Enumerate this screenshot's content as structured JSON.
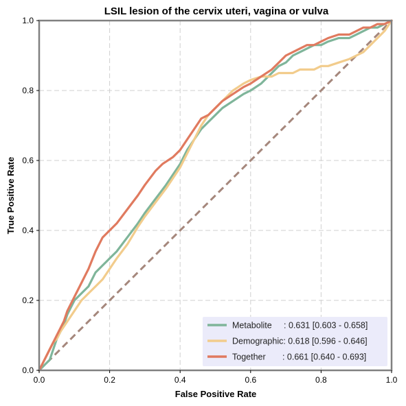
{
  "chart_data": {
    "type": "line",
    "title": "LSIL lesion of the cervix uteri, vagina or vulva",
    "xlabel": "False Positive Rate",
    "ylabel": "True Positive Rate",
    "xlim": [
      0,
      1
    ],
    "ylim": [
      0,
      1
    ],
    "xticks": [
      "0.0",
      "0.2",
      "0.4",
      "0.6",
      "0.8",
      "1.0"
    ],
    "yticks": [
      "0.0",
      "0.2",
      "0.4",
      "0.6",
      "0.8",
      "1.0"
    ],
    "grid": true,
    "legend_position": "bottom-right",
    "series": [
      {
        "name": "Metabolite",
        "legend_label": "Metabolite     : 0.631 [0.603 - 0.658]",
        "color": "#7fb59a",
        "x": [
          0,
          0.01,
          0.02,
          0.03,
          0.04,
          0.05,
          0.06,
          0.07,
          0.08,
          0.1,
          0.12,
          0.14,
          0.16,
          0.18,
          0.2,
          0.22,
          0.25,
          0.28,
          0.3,
          0.33,
          0.36,
          0.38,
          0.4,
          0.42,
          0.44,
          0.46,
          0.48,
          0.5,
          0.52,
          0.55,
          0.58,
          0.6,
          0.63,
          0.66,
          0.68,
          0.7,
          0.72,
          0.74,
          0.76,
          0.78,
          0.8,
          0.82,
          0.85,
          0.88,
          0.9,
          0.92,
          0.94,
          0.96,
          0.98,
          1.0
        ],
        "y": [
          0,
          0.01,
          0.02,
          0.03,
          0.06,
          0.09,
          0.11,
          0.13,
          0.16,
          0.2,
          0.22,
          0.24,
          0.28,
          0.3,
          0.32,
          0.34,
          0.38,
          0.42,
          0.45,
          0.49,
          0.53,
          0.56,
          0.59,
          0.63,
          0.66,
          0.69,
          0.71,
          0.73,
          0.75,
          0.77,
          0.79,
          0.8,
          0.82,
          0.85,
          0.87,
          0.88,
          0.9,
          0.91,
          0.92,
          0.93,
          0.93,
          0.94,
          0.95,
          0.95,
          0.96,
          0.97,
          0.98,
          0.98,
          0.99,
          1.0
        ]
      },
      {
        "name": "Demographic",
        "legend_label": "Demographic: 0.618 [0.596 - 0.646]",
        "color": "#f2cc8c",
        "x": [
          0,
          0.01,
          0.02,
          0.03,
          0.04,
          0.05,
          0.06,
          0.08,
          0.1,
          0.12,
          0.14,
          0.16,
          0.18,
          0.2,
          0.22,
          0.25,
          0.28,
          0.3,
          0.33,
          0.36,
          0.38,
          0.4,
          0.42,
          0.44,
          0.46,
          0.48,
          0.5,
          0.52,
          0.55,
          0.58,
          0.6,
          0.63,
          0.66,
          0.68,
          0.7,
          0.72,
          0.74,
          0.76,
          0.78,
          0.8,
          0.82,
          0.85,
          0.88,
          0.9,
          0.92,
          0.94,
          0.96,
          0.98,
          1.0
        ],
        "y": [
          0,
          0.02,
          0.04,
          0.06,
          0.08,
          0.09,
          0.11,
          0.14,
          0.17,
          0.2,
          0.22,
          0.24,
          0.26,
          0.29,
          0.32,
          0.36,
          0.41,
          0.44,
          0.48,
          0.52,
          0.55,
          0.58,
          0.62,
          0.66,
          0.7,
          0.73,
          0.75,
          0.77,
          0.8,
          0.82,
          0.83,
          0.84,
          0.84,
          0.85,
          0.85,
          0.85,
          0.86,
          0.86,
          0.86,
          0.87,
          0.87,
          0.88,
          0.89,
          0.9,
          0.91,
          0.93,
          0.95,
          0.97,
          1.0
        ]
      },
      {
        "name": "Together",
        "legend_label": "Together       : 0.661 [0.640 - 0.693]",
        "color": "#e07a5f",
        "x": [
          0,
          0.01,
          0.02,
          0.03,
          0.04,
          0.05,
          0.06,
          0.07,
          0.08,
          0.1,
          0.12,
          0.14,
          0.16,
          0.18,
          0.2,
          0.22,
          0.25,
          0.28,
          0.3,
          0.33,
          0.35,
          0.38,
          0.4,
          0.42,
          0.44,
          0.46,
          0.48,
          0.5,
          0.52,
          0.55,
          0.58,
          0.6,
          0.63,
          0.66,
          0.68,
          0.7,
          0.72,
          0.74,
          0.76,
          0.78,
          0.8,
          0.82,
          0.85,
          0.88,
          0.9,
          0.92,
          0.94,
          0.96,
          0.98,
          1.0
        ],
        "y": [
          0,
          0.02,
          0.04,
          0.06,
          0.08,
          0.1,
          0.12,
          0.14,
          0.17,
          0.21,
          0.25,
          0.29,
          0.34,
          0.38,
          0.4,
          0.42,
          0.46,
          0.5,
          0.53,
          0.57,
          0.59,
          0.61,
          0.63,
          0.66,
          0.69,
          0.72,
          0.73,
          0.75,
          0.77,
          0.79,
          0.81,
          0.82,
          0.84,
          0.86,
          0.88,
          0.9,
          0.91,
          0.92,
          0.93,
          0.93,
          0.94,
          0.95,
          0.96,
          0.96,
          0.97,
          0.98,
          0.98,
          0.99,
          0.99,
          1.0
        ]
      }
    ],
    "reference_line": {
      "x": [
        0,
        1
      ],
      "y": [
        0,
        1
      ],
      "color": "#a5877c",
      "style": "dashed"
    },
    "legend_background": "#ebebfa"
  }
}
